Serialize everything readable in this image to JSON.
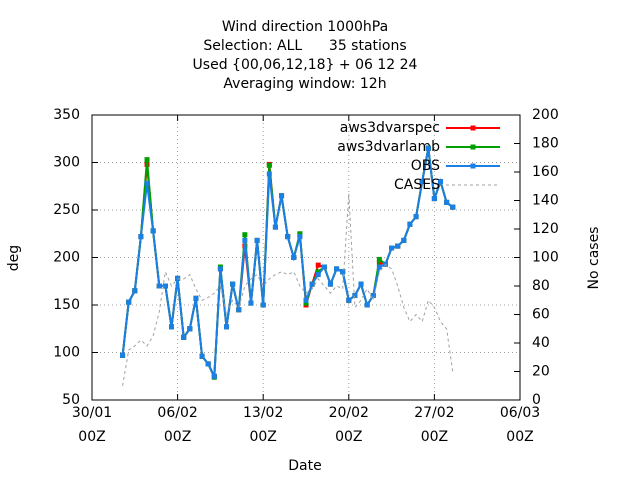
{
  "chart_data": {
    "type": "line",
    "title": [
      "Wind direction 1000hPa",
      "Selection: ALL      35 stations",
      "Used {00,06,12,18} + 06 12 24",
      "Averaging window: 12h"
    ],
    "xlabel": "Date",
    "ylabel": "deg",
    "y2label": "No cases",
    "x": [
      "01/02 12Z",
      "02/02 00Z",
      "02/02 12Z",
      "03/02 00Z",
      "03/02 12Z",
      "04/02 00Z",
      "04/02 12Z",
      "05/02 00Z",
      "05/02 12Z",
      "06/02 00Z",
      "06/02 12Z",
      "07/02 00Z",
      "07/02 12Z",
      "08/02 00Z",
      "08/02 12Z",
      "09/02 00Z",
      "09/02 12Z",
      "10/02 00Z",
      "10/02 12Z",
      "11/02 00Z",
      "11/02 12Z",
      "12/02 00Z",
      "12/02 12Z",
      "13/02 00Z",
      "13/02 12Z",
      "14/02 00Z",
      "14/02 12Z",
      "15/02 00Z",
      "15/02 12Z",
      "16/02 00Z",
      "16/02 12Z",
      "17/02 00Z",
      "17/02 12Z",
      "18/02 00Z",
      "18/02 12Z",
      "19/02 00Z",
      "19/02 12Z",
      "20/02 00Z",
      "20/02 12Z",
      "21/02 00Z",
      "21/02 12Z",
      "22/02 00Z",
      "22/02 12Z",
      "23/02 00Z",
      "23/02 12Z",
      "24/02 00Z",
      "24/02 12Z",
      "25/02 00Z",
      "25/02 12Z",
      "26/02 00Z",
      "26/02 12Z",
      "27/02 00Z",
      "27/02 12Z",
      "28/02 00Z",
      "28/02 12Z"
    ],
    "series": [
      {
        "name": "aws3dvarspec",
        "color": "#ff0000",
        "values": [
          97,
          153,
          165,
          222,
          298,
          228,
          170,
          170,
          127,
          178,
          116,
          125,
          157,
          96,
          88,
          75,
          188,
          127,
          172,
          145,
          212,
          152,
          218,
          150,
          298,
          232,
          265,
          222,
          200,
          224,
          150,
          172,
          192,
          190,
          172,
          188,
          185,
          155,
          160,
          172,
          150,
          160,
          195,
          193,
          210,
          212,
          218,
          235,
          243,
          280,
          315,
          262,
          280,
          258,
          253
        ]
      },
      {
        "name": "aws3dvarlamb",
        "color": "#00a000",
        "values": [
          97,
          153,
          165,
          222,
          303,
          228,
          170,
          170,
          127,
          178,
          116,
          125,
          157,
          96,
          88,
          74,
          190,
          127,
          172,
          145,
          224,
          152,
          218,
          150,
          297,
          232,
          265,
          222,
          200,
          225,
          152,
          172,
          185,
          190,
          172,
          188,
          185,
          155,
          160,
          172,
          150,
          160,
          198,
          193,
          210,
          212,
          218,
          235,
          243,
          280,
          315,
          262,
          280,
          258,
          253
        ]
      },
      {
        "name": "OBS",
        "color": "#1a80e6",
        "values": [
          97,
          153,
          165,
          222,
          278,
          228,
          170,
          170,
          127,
          178,
          116,
          125,
          157,
          96,
          88,
          75,
          188,
          127,
          172,
          145,
          218,
          152,
          218,
          150,
          288,
          232,
          265,
          222,
          200,
          222,
          155,
          172,
          182,
          190,
          172,
          188,
          185,
          155,
          160,
          172,
          150,
          160,
          190,
          193,
          210,
          212,
          218,
          235,
          243,
          280,
          315,
          262,
          280,
          258,
          253
        ]
      },
      {
        "name": "CASES",
        "color": "#a0a0a0",
        "axis": "y2",
        "dashed": true,
        "values": [
          10,
          35,
          38,
          42,
          38,
          45,
          62,
          90,
          80,
          85,
          85,
          88,
          78,
          70,
          72,
          75,
          80,
          60,
          70,
          65,
          80,
          85,
          88,
          80,
          85,
          88,
          90,
          88,
          90,
          80,
          75,
          78,
          85,
          80,
          75,
          80,
          78,
          145,
          65,
          70,
          78,
          70,
          90,
          95,
          92,
          80,
          65,
          55,
          60,
          55,
          70,
          65,
          55,
          50,
          20
        ]
      }
    ],
    "xlim": [
      "30/01 00Z",
      "06/03 00Z"
    ],
    "xticks": [
      "30/01 00Z",
      "06/02 00Z",
      "13/02 00Z",
      "20/02 00Z",
      "27/02 00Z",
      "06/03 00Z"
    ],
    "ylim": [
      50,
      350
    ],
    "yticks": [
      50,
      100,
      150,
      200,
      250,
      300,
      350
    ],
    "y2lim": [
      0,
      200
    ],
    "y2ticks": [
      0,
      20,
      40,
      60,
      80,
      100,
      120,
      140,
      160,
      180,
      200
    ],
    "grid": true,
    "legend": "top right"
  }
}
